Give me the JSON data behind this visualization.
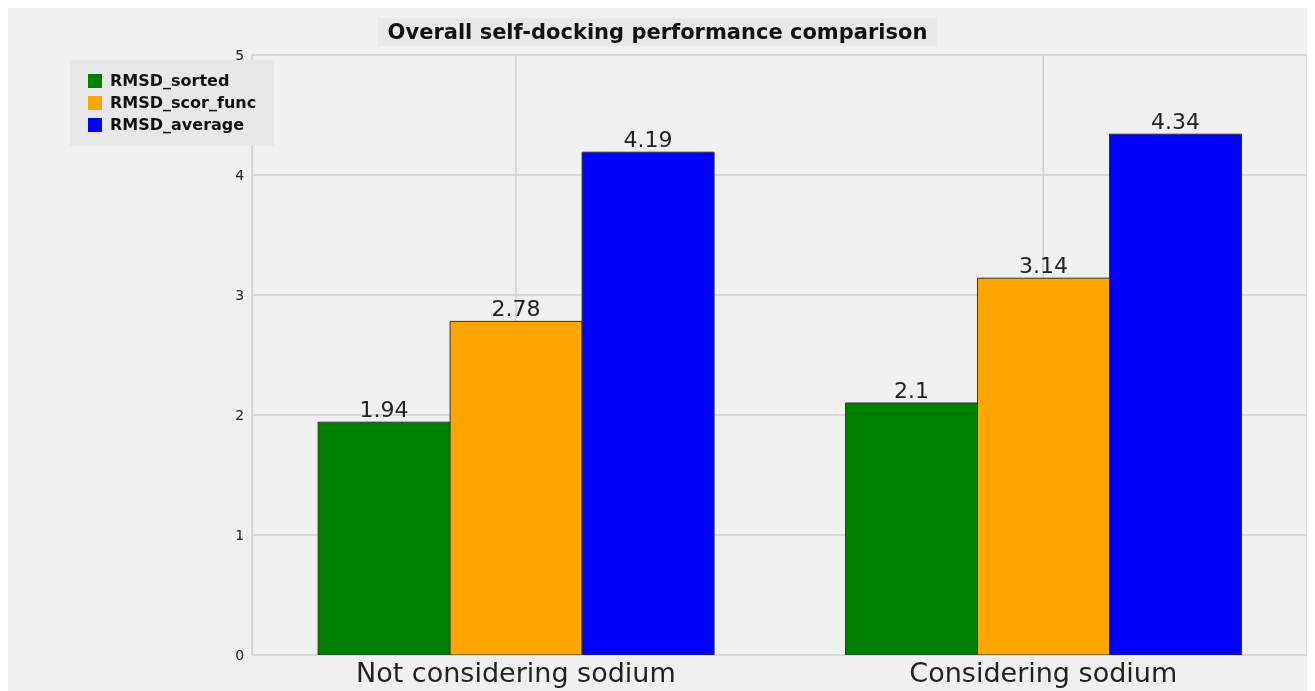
{
  "chart_data": {
    "type": "bar",
    "title": "Overall self-docking performance comparison",
    "categories": [
      "Not considering sodium",
      "Considering sodium"
    ],
    "series": [
      {
        "name": "RMSD_sorted",
        "color": "#008000",
        "values": [
          1.94,
          2.1
        ]
      },
      {
        "name": "RMSD_scor_func",
        "color": "#ffa500",
        "values": [
          2.78,
          3.14
        ]
      },
      {
        "name": "RMSD_average",
        "color": "#0000ff",
        "values": [
          4.19,
          4.34
        ]
      }
    ],
    "ylim": [
      0,
      5
    ],
    "yticks": [
      0,
      1,
      2,
      3,
      4,
      5
    ],
    "grid": true,
    "legend": "top left",
    "data_labels": true
  }
}
